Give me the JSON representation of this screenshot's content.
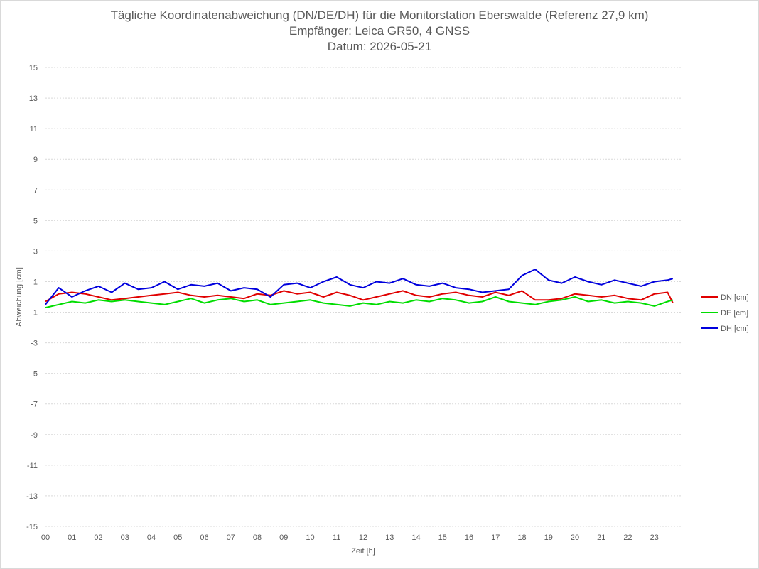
{
  "chart_data": {
    "type": "line",
    "title": "Tägliche Koordinatenabweichung (DN/DE/DH) für die Monitorstation Eberswalde (Referenz 27,9 km)",
    "subtitle1": "Empfänger: Leica GR50, 4 GNSS",
    "subtitle2": "Datum: 2026-05-21",
    "xlabel": "Zeit [h]",
    "ylabel": "Abweichung [cm]",
    "xlim": [
      0,
      24
    ],
    "ylim": [
      -15,
      15
    ],
    "x_ticks": [
      "00",
      "01",
      "02",
      "03",
      "04",
      "05",
      "06",
      "07",
      "08",
      "09",
      "10",
      "11",
      "12",
      "13",
      "14",
      "15",
      "16",
      "17",
      "18",
      "19",
      "20",
      "21",
      "22",
      "23"
    ],
    "y_ticks": [
      "15",
      "13",
      "11",
      "9",
      "7",
      "5",
      "3",
      "1",
      "-1",
      "-3",
      "-5",
      "-7",
      "-9",
      "-11",
      "-13",
      "-15"
    ],
    "grid": true,
    "legend_position": "right",
    "x": [
      0.0,
      0.5,
      1.0,
      1.5,
      2.0,
      2.5,
      3.0,
      3.5,
      4.0,
      4.5,
      5.0,
      5.5,
      6.0,
      6.5,
      7.0,
      7.5,
      8.0,
      8.5,
      9.0,
      9.5,
      10.0,
      10.5,
      11.0,
      11.5,
      12.0,
      12.5,
      13.0,
      13.5,
      14.0,
      14.5,
      15.0,
      15.5,
      16.0,
      16.5,
      17.0,
      17.5,
      18.0,
      18.5,
      19.0,
      19.5,
      20.0,
      20.5,
      21.0,
      21.5,
      22.0,
      22.5,
      23.0,
      23.5,
      23.7
    ],
    "series": [
      {
        "name": "DN [cm]",
        "color": "#e00000",
        "values": [
          -0.3,
          0.2,
          0.3,
          0.2,
          0.0,
          -0.2,
          -0.1,
          0.0,
          0.1,
          0.2,
          0.3,
          0.1,
          0.0,
          0.1,
          0.0,
          -0.1,
          0.2,
          0.1,
          0.4,
          0.2,
          0.3,
          0.0,
          0.3,
          0.1,
          -0.2,
          0.0,
          0.2,
          0.4,
          0.1,
          0.0,
          0.2,
          0.3,
          0.1,
          0.0,
          0.3,
          0.1,
          0.4,
          -0.2,
          -0.2,
          -0.1,
          0.2,
          0.1,
          0.0,
          0.1,
          -0.1,
          -0.2,
          0.2,
          0.3,
          -0.4
        ]
      },
      {
        "name": "DE [cm]",
        "color": "#00dd00",
        "values": [
          -0.7,
          -0.5,
          -0.3,
          -0.4,
          -0.2,
          -0.3,
          -0.2,
          -0.3,
          -0.4,
          -0.5,
          -0.3,
          -0.1,
          -0.4,
          -0.2,
          -0.1,
          -0.3,
          -0.2,
          -0.5,
          -0.4,
          -0.3,
          -0.2,
          -0.4,
          -0.5,
          -0.6,
          -0.4,
          -0.5,
          -0.3,
          -0.4,
          -0.2,
          -0.3,
          -0.1,
          -0.2,
          -0.4,
          -0.3,
          0.0,
          -0.3,
          -0.4,
          -0.5,
          -0.3,
          -0.2,
          0.0,
          -0.3,
          -0.2,
          -0.4,
          -0.3,
          -0.4,
          -0.6,
          -0.3,
          -0.2
        ]
      },
      {
        "name": "DH [cm]",
        "color": "#0000dd",
        "values": [
          -0.5,
          0.6,
          0.0,
          0.4,
          0.7,
          0.3,
          0.9,
          0.5,
          0.6,
          1.0,
          0.5,
          0.8,
          0.7,
          0.9,
          0.4,
          0.6,
          0.5,
          0.0,
          0.8,
          0.9,
          0.6,
          1.0,
          1.3,
          0.8,
          0.6,
          1.0,
          0.9,
          1.2,
          0.8,
          0.7,
          0.9,
          0.6,
          0.5,
          0.3,
          0.4,
          0.5,
          1.4,
          1.8,
          1.1,
          0.9,
          1.3,
          1.0,
          0.8,
          1.1,
          0.9,
          0.7,
          1.0,
          1.1,
          1.2
        ]
      }
    ]
  }
}
